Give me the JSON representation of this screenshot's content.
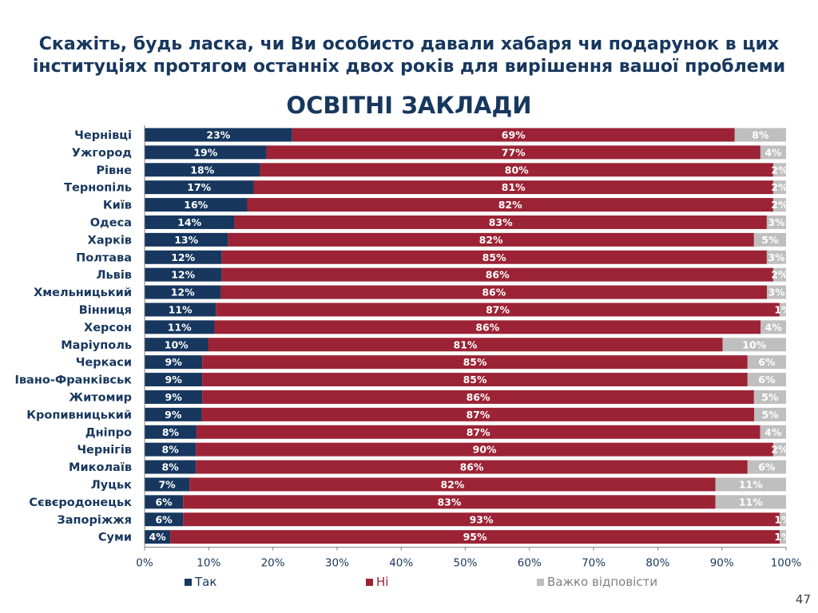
{
  "title": "Скажіть, будь ласка, чи Ви особисто давали хабаря чи подарунок в цих інституціях протягом останніх двох років для вирішення вашої проблеми",
  "subtitle": "ОСВІТНІ ЗАКЛАДИ",
  "page_number": "47",
  "colors": {
    "tak": "#17375e",
    "ni": "#9b2335",
    "vazhko": "#bfbfbf",
    "title": "#17375e"
  },
  "chart_data": {
    "type": "bar",
    "orientation": "horizontal",
    "stacked": true,
    "percent": true,
    "categories": [
      "Чернівці",
      "Ужгород",
      "Рівне",
      "Тернопіль",
      "Київ",
      "Одеса",
      "Харків",
      "Полтава",
      "Львів",
      "Хмельницький",
      "Вінниця",
      "Херсон",
      "Маріуполь",
      "Черкаси",
      "Івано-Франківськ",
      "Житомир",
      "Кропивницький",
      "Дніпро",
      "Чернігів",
      "Миколаїв",
      "Луцьк",
      "Сєвєродонецьк",
      "Запоріжжя",
      "Суми"
    ],
    "series": [
      {
        "name": "Так",
        "values": [
          23,
          19,
          18,
          17,
          16,
          14,
          13,
          12,
          12,
          12,
          11,
          11,
          10,
          9,
          9,
          9,
          9,
          8,
          8,
          8,
          7,
          6,
          6,
          4
        ]
      },
      {
        "name": "Ні",
        "values": [
          69,
          77,
          80,
          81,
          82,
          83,
          82,
          85,
          86,
          86,
          87,
          86,
          81,
          85,
          85,
          86,
          87,
          87,
          90,
          86,
          82,
          83,
          93,
          95
        ]
      },
      {
        "name": "Важко відповісти",
        "values": [
          8,
          4,
          2,
          2,
          2,
          3,
          5,
          3,
          2,
          3,
          1,
          4,
          10,
          6,
          6,
          5,
          5,
          4,
          2,
          6,
          11,
          11,
          1,
          1
        ]
      }
    ],
    "xticks": [
      "0%",
      "10%",
      "20%",
      "30%",
      "40%",
      "50%",
      "60%",
      "70%",
      "80%",
      "90%",
      "100%"
    ],
    "xlim": [
      0,
      100
    ],
    "legend_position": "bottom"
  }
}
